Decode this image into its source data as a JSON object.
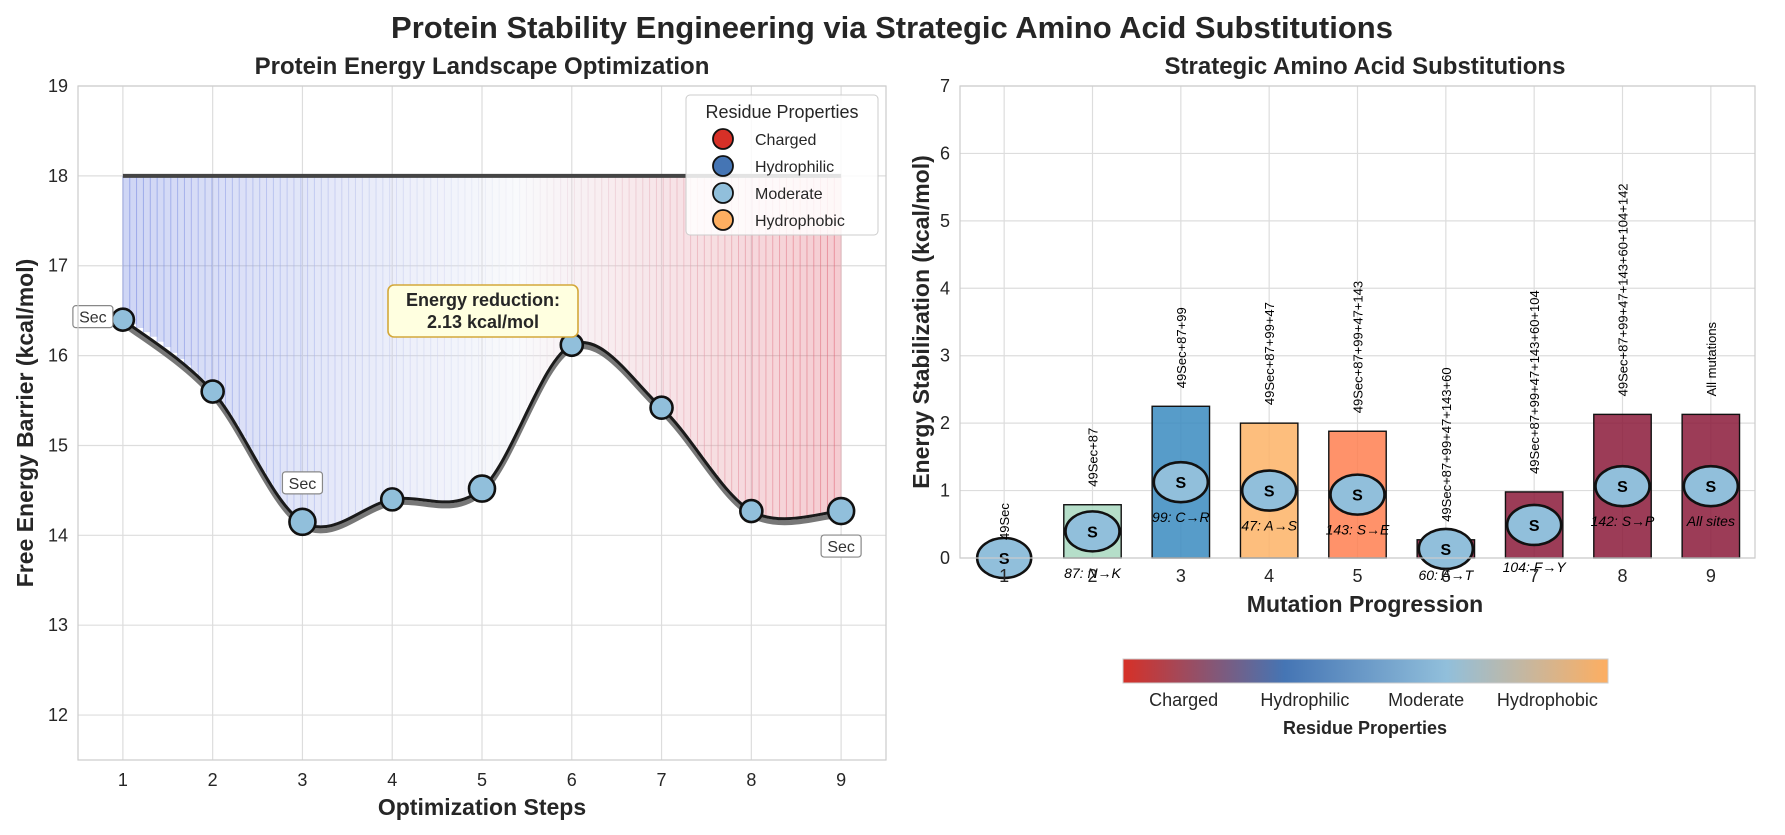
{
  "figure": {
    "suptitle": "Protein Stability Engineering via Strategic Amino Acid Substitutions"
  },
  "colors": {
    "Charged": "#d73027",
    "Hydrophilic": "#4575b4",
    "Moderate": "#91bfdb",
    "Hydrophobic": "#fdae61"
  },
  "chart_data": [
    {
      "type": "line",
      "title": "Protein Energy Landscape Optimization",
      "xlabel": "Optimization Steps",
      "ylabel": "Free Energy Barrier (kcal/mol)",
      "x": [
        1,
        2,
        3,
        4,
        5,
        6,
        7,
        8,
        9
      ],
      "xticks": [
        "1",
        "2",
        "3",
        "4",
        "5",
        "6",
        "7",
        "8",
        "9"
      ],
      "ylim": [
        11.5,
        19
      ],
      "yticks": [
        "12",
        "13",
        "14",
        "15",
        "16",
        "17",
        "18",
        "19"
      ],
      "reference_level": 18,
      "series": [
        {
          "values": [
            16.4,
            15.6,
            14.15,
            14.4,
            14.52,
            16.12,
            15.42,
            14.27,
            14.27
          ]
        }
      ],
      "point_sizes": [
        "medium",
        "medium",
        "large",
        "medium",
        "large",
        "medium",
        "medium",
        "medium",
        "large"
      ],
      "sec_labels": [
        {
          "x": 1,
          "text": "Sec"
        },
        {
          "x": 3,
          "text": "Sec"
        },
        {
          "x": 9,
          "text": "Sec"
        }
      ],
      "annotation": {
        "line1": "Energy reduction:",
        "line2": "2.13 kcal/mol"
      },
      "legend": {
        "title": "Residue Properties",
        "position": "upper-right",
        "items": [
          {
            "label": "Charged",
            "color": "#d73027"
          },
          {
            "label": "Hydrophilic",
            "color": "#4575b4"
          },
          {
            "label": "Moderate",
            "color": "#91bfdb"
          },
          {
            "label": "Hydrophobic",
            "color": "#fdae61"
          }
        ]
      },
      "grid": true
    },
    {
      "type": "bar",
      "title": "Strategic Amino Acid Substitutions",
      "xlabel": "Mutation Progression",
      "ylabel": "Energy Stabilization (kcal/mol)",
      "categories": [
        "1",
        "2",
        "3",
        "4",
        "5",
        "6",
        "7",
        "8",
        "9"
      ],
      "values": [
        0,
        0.79,
        2.25,
        2.0,
        1.88,
        0.27,
        0.98,
        2.13,
        2.13
      ],
      "bar_colors": [
        "#91bfdb",
        "#a8d8c0",
        "#3a8bc0",
        "#fdb366",
        "#ff7f50",
        "#8b1a3a",
        "#8b1a3a",
        "#8b1a3a",
        "#8b1a3a"
      ],
      "ylim": [
        0,
        7
      ],
      "yticks": [
        "0",
        "1",
        "2",
        "3",
        "4",
        "5",
        "6",
        "7"
      ],
      "circle_label": "S",
      "combo_labels": [
        "49Sec",
        "49Sec+87",
        "49Sec+87+99",
        "49Sec+87+99+47",
        "49Sec+87+99+47+143",
        "49Sec+87+99+47+143+60",
        "49Sec+87+99+47+143+60+104",
        "49Sec+87+99+47+143+60+104+142",
        "All mutations"
      ],
      "mutation_labels": [
        "",
        "87: N→K",
        "99: C→R",
        "47: A→S",
        "143: S→E",
        "60: A→T",
        "104: F→Y",
        "142: S→P",
        "All sites"
      ],
      "colorbar": {
        "title": "Residue Properties",
        "ticks": [
          "Charged",
          "Hydrophilic",
          "Moderate",
          "Hydrophobic"
        ]
      },
      "grid": true
    }
  ]
}
